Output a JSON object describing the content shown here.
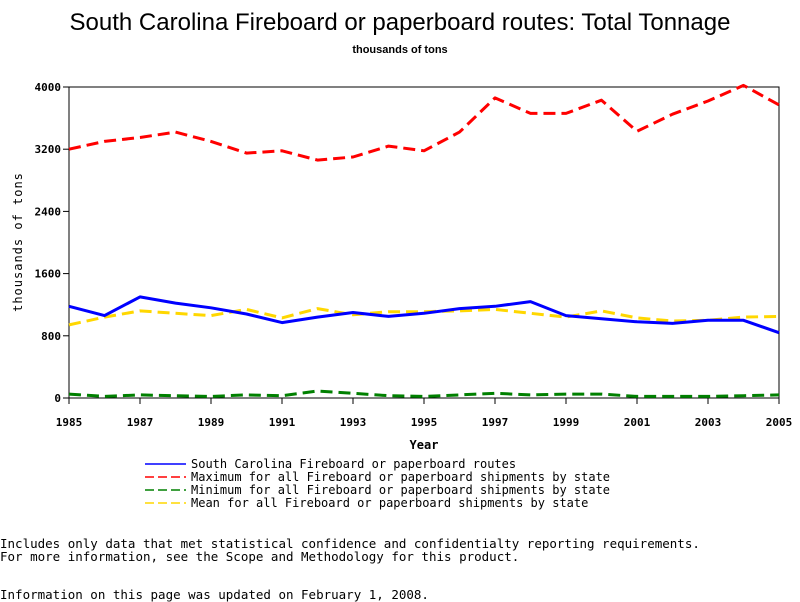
{
  "chart_data": {
    "type": "line",
    "title": "South Carolina Fireboard or paperboard routes: Total Tonnage",
    "subtitle": "thousands of tons",
    "xlabel": "Year",
    "ylabel": "thousands of tons",
    "xlim": [
      1985,
      2005
    ],
    "ylim": [
      0,
      4000
    ],
    "x_ticks": [
      "1985",
      "1987",
      "1989",
      "1991",
      "1993",
      "1995",
      "1997",
      "1999",
      "2001",
      "2003",
      "2005"
    ],
    "y_ticks": [
      "0",
      "800",
      "1600",
      "2400",
      "3200",
      "4000"
    ],
    "grid": false,
    "legend_position": "bottom",
    "x": [
      1985,
      1986,
      1987,
      1988,
      1989,
      1990,
      1991,
      1992,
      1993,
      1994,
      1995,
      1996,
      1997,
      1998,
      1999,
      2000,
      2001,
      2002,
      2003,
      2004,
      2005
    ],
    "series": [
      {
        "name": "South Carolina Fireboard or paperboard routes",
        "color": "#0000ff",
        "dash": "solid",
        "values": [
          1180,
          1060,
          1300,
          1220,
          1160,
          1080,
          970,
          1040,
          1100,
          1050,
          1090,
          1150,
          1180,
          1240,
          1060,
          1020,
          980,
          960,
          1000,
          1000,
          840
        ]
      },
      {
        "name": "Maximum for all Fireboard or paperboard shipments by state",
        "color": "#ff0000",
        "dash": "dashed",
        "values": [
          3200,
          3300,
          3350,
          3420,
          3300,
          3150,
          3180,
          3060,
          3100,
          3240,
          3180,
          3420,
          3860,
          3660,
          3660,
          3830,
          3430,
          3650,
          3820,
          4020,
          3770
        ]
      },
      {
        "name": "Minimum for all Fireboard or paperboard shipments by state",
        "color": "#008000",
        "dash": "dashed",
        "values": [
          50,
          20,
          40,
          30,
          20,
          40,
          30,
          90,
          60,
          30,
          20,
          40,
          60,
          40,
          50,
          50,
          20,
          20,
          20,
          30,
          40
        ]
      },
      {
        "name": "Mean for all Fireboard or paperboard shipments by state",
        "color": "#ffd700",
        "dash": "dashed",
        "values": [
          940,
          1040,
          1120,
          1090,
          1060,
          1140,
          1030,
          1150,
          1070,
          1110,
          1110,
          1120,
          1140,
          1090,
          1040,
          1120,
          1030,
          990,
          1000,
          1040,
          1050
        ]
      }
    ]
  },
  "notes": {
    "line1": "Includes only data that met statistical confidence and confidentialty reporting requirements.",
    "line2": "For more information, see the Scope and Methodology for this product.",
    "updated": "Information on this page was updated on February 1, 2008."
  }
}
